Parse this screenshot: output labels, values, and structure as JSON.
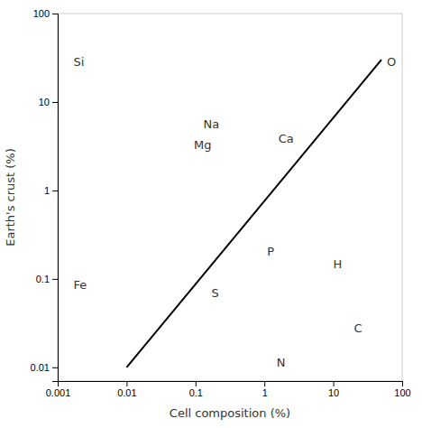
{
  "chart_data": {
    "type": "line",
    "log": true,
    "grid": false,
    "xlabel": "Cell composition (%)",
    "ylabel": "Earth's crust (%)",
    "xlim": [
      0.001,
      100
    ],
    "ylim": [
      0.007,
      100
    ],
    "xticks": [
      0.001,
      0.01,
      0.1,
      1,
      10,
      100
    ],
    "yticks": [
      0.01,
      0.1,
      1,
      10,
      100
    ],
    "series": [
      {
        "x": [
          0.01,
          50
        ],
        "values": [
          0.01,
          30
        ],
        "color": "#000000"
      }
    ],
    "annotations": [
      {
        "text": "Si",
        "x": 0.0017,
        "y": 28
      },
      {
        "text": "Fe",
        "x": 0.0017,
        "y": 0.083
      },
      {
        "text": "Na",
        "x": 0.13,
        "y": 5.5
      },
      {
        "text": "Mg",
        "x": 0.095,
        "y": 3.2
      },
      {
        "text": "Ca",
        "x": 1.6,
        "y": 3.8
      },
      {
        "text": "O",
        "x": 60,
        "y": 28
      },
      {
        "text": "P",
        "x": 1.1,
        "y": 0.2
      },
      {
        "text": "H",
        "x": 10,
        "y": 0.145
      },
      {
        "text": "S",
        "x": 0.17,
        "y": 0.068
      },
      {
        "text": "C",
        "x": 20,
        "y": 0.027
      },
      {
        "text": "N",
        "x": 1.5,
        "y": 0.011
      }
    ]
  }
}
